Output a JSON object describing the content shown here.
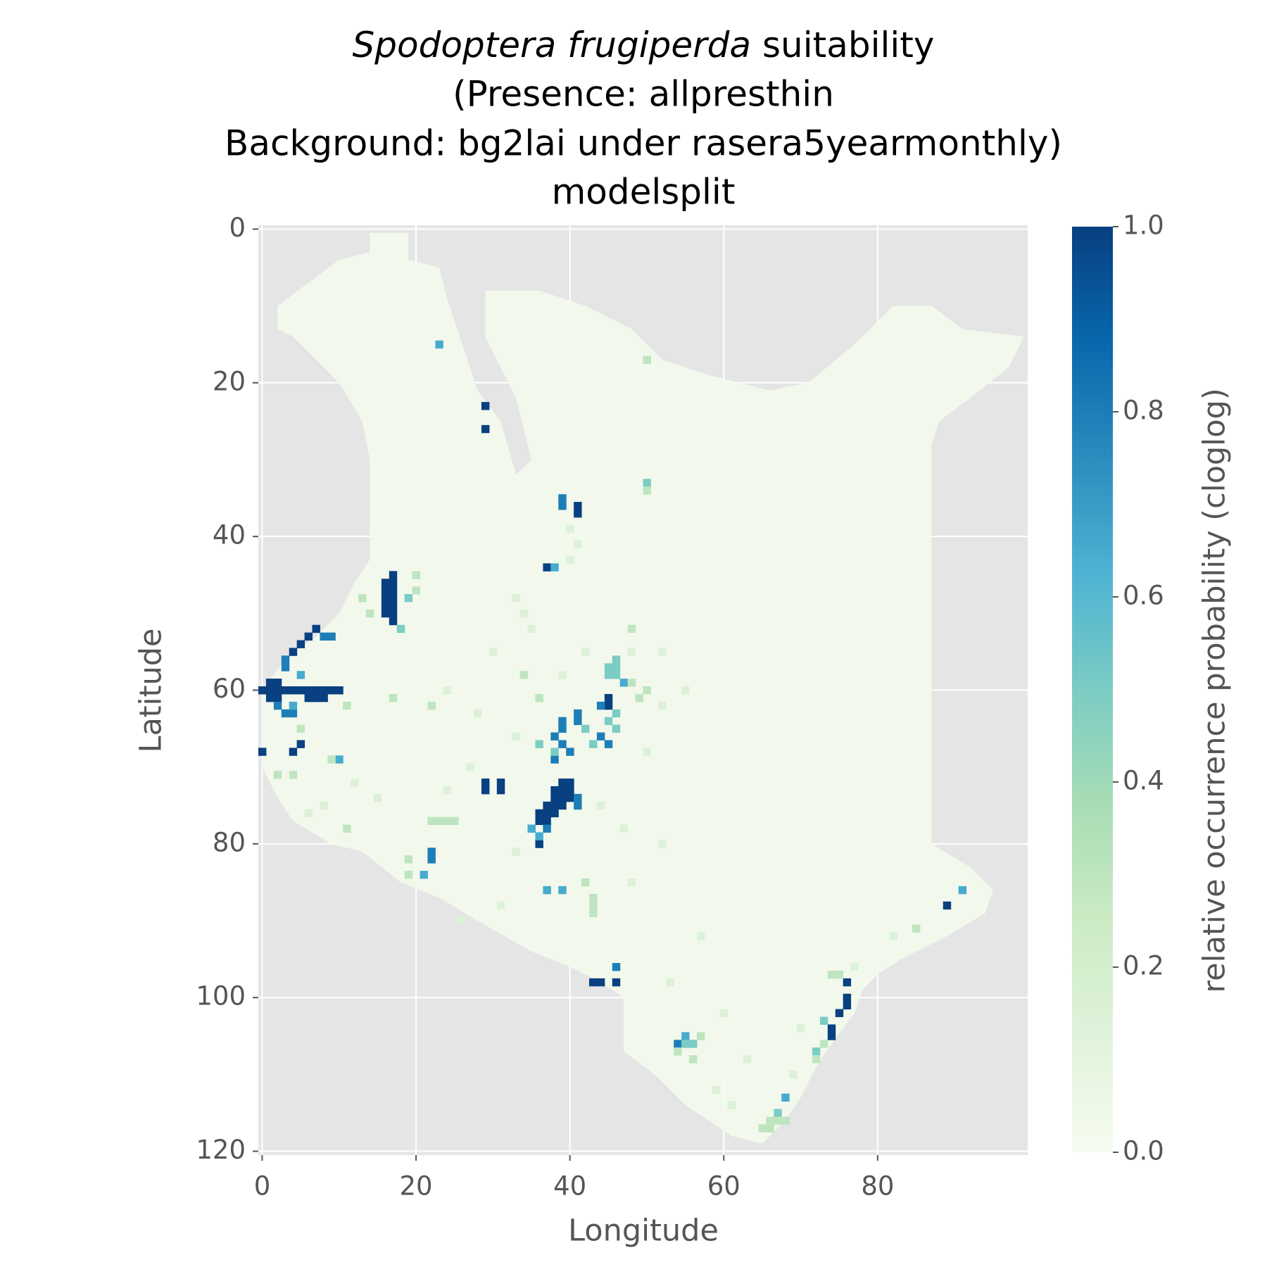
{
  "chart_data": {
    "type": "heatmap",
    "title": {
      "species": "Spodoptera frugiperda",
      "lines": [
        "suitability",
        "(Presence: allpresthin",
        "Background: bg2lai under rasera5yearmonthly)",
        "modelsplit"
      ]
    },
    "xlabel": "Longitude",
    "ylabel": "Latitude",
    "xlim": [
      -0.5,
      99.5
    ],
    "ylim": [
      -0.5,
      120.5
    ],
    "y_inverted": true,
    "xticks": [
      0,
      20,
      40,
      60,
      80
    ],
    "yticks": [
      0,
      20,
      40,
      60,
      80,
      100,
      120
    ],
    "grid": true,
    "colorbar": {
      "label": "relative occurrence probability (cloglog)",
      "lim": [
        0,
        1
      ],
      "ticks": [
        {
          "value": 0,
          "label": "0.0"
        },
        0.2,
        0.4,
        0.6,
        0.8,
        {
          "value": 1,
          "label": "1.0"
        }
      ]
    },
    "colormap": [
      "#f7fcf0",
      "#e0f3db",
      "#ccebc5",
      "#a8ddb5",
      "#7bccc4",
      "#4eb3d3",
      "#2b8cbe",
      "#0868ac",
      "#084081"
    ],
    "land_value": 0.02,
    "land_outline": [
      [
        14,
        0.5
      ],
      [
        19,
        0.5
      ],
      [
        19,
        4
      ],
      [
        23,
        5
      ],
      [
        24,
        9
      ],
      [
        26,
        15
      ],
      [
        28,
        21
      ],
      [
        31,
        25
      ],
      [
        33,
        32
      ],
      [
        35,
        30
      ],
      [
        33,
        22
      ],
      [
        29,
        14
      ],
      [
        29,
        8
      ],
      [
        36,
        8
      ],
      [
        42,
        10
      ],
      [
        48,
        13
      ],
      [
        52,
        17
      ],
      [
        58,
        19
      ],
      [
        66,
        21
      ],
      [
        71,
        20
      ],
      [
        77,
        15
      ],
      [
        82,
        10
      ],
      [
        87,
        10
      ],
      [
        91,
        13
      ],
      [
        99,
        14
      ],
      [
        97,
        18
      ],
      [
        92,
        22
      ],
      [
        88,
        25
      ],
      [
        87,
        28
      ],
      [
        87,
        80
      ],
      [
        92,
        83
      ],
      [
        95,
        86
      ],
      [
        94,
        89
      ],
      [
        89,
        92
      ],
      [
        83,
        95
      ],
      [
        80,
        97
      ],
      [
        78,
        99
      ],
      [
        77,
        102
      ],
      [
        74,
        106
      ],
      [
        72,
        109
      ],
      [
        70,
        113
      ],
      [
        68,
        116
      ],
      [
        65,
        119
      ],
      [
        61,
        118
      ],
      [
        58,
        116
      ],
      [
        55,
        114
      ],
      [
        51,
        110
      ],
      [
        47,
        107
      ],
      [
        47,
        100
      ],
      [
        44,
        98
      ],
      [
        40,
        96
      ],
      [
        35,
        94
      ],
      [
        28,
        90
      ],
      [
        23,
        87
      ],
      [
        18,
        85
      ],
      [
        13,
        81
      ],
      [
        9,
        80
      ],
      [
        4,
        77
      ],
      [
        2,
        74
      ],
      [
        1,
        72
      ],
      [
        0,
        70
      ],
      [
        0,
        60
      ],
      [
        3,
        56
      ],
      [
        7,
        53
      ],
      [
        10,
        50
      ],
      [
        12,
        46
      ],
      [
        14,
        43
      ],
      [
        14,
        30
      ],
      [
        13,
        25
      ],
      [
        10,
        20
      ],
      [
        7,
        17
      ],
      [
        4,
        14
      ],
      [
        2,
        13
      ],
      [
        2,
        10
      ],
      [
        6,
        7
      ],
      [
        10,
        4
      ],
      [
        14,
        3
      ]
    ],
    "cells": [
      [
        17,
        45,
        1
      ],
      [
        17,
        46,
        1
      ],
      [
        17,
        47,
        1
      ],
      [
        17,
        48,
        1
      ],
      [
        17,
        49,
        1
      ],
      [
        17,
        50,
        1
      ],
      [
        17,
        51,
        1
      ],
      [
        16,
        46,
        1
      ],
      [
        16,
        47,
        1
      ],
      [
        16,
        48,
        1
      ],
      [
        16,
        49,
        1
      ],
      [
        16,
        50,
        1
      ],
      [
        0,
        60,
        1
      ],
      [
        1,
        60,
        1
      ],
      [
        2,
        60,
        1
      ],
      [
        3,
        60,
        1
      ],
      [
        4,
        60,
        1
      ],
      [
        5,
        60,
        1
      ],
      [
        6,
        60,
        1
      ],
      [
        7,
        60,
        1
      ],
      [
        8,
        60,
        1
      ],
      [
        9,
        60,
        1
      ],
      [
        10,
        60,
        1
      ],
      [
        1,
        61,
        1
      ],
      [
        2,
        61,
        1
      ],
      [
        6,
        61,
        1
      ],
      [
        7,
        61,
        1
      ],
      [
        8,
        61,
        1
      ],
      [
        1,
        59,
        1
      ],
      [
        2,
        59,
        1
      ],
      [
        4,
        55,
        1
      ],
      [
        5,
        54,
        1
      ],
      [
        6,
        53,
        1
      ],
      [
        7,
        52,
        1
      ],
      [
        29,
        23,
        1
      ],
      [
        29,
        26,
        1
      ],
      [
        41,
        36,
        1
      ],
      [
        41,
        37,
        1
      ],
      [
        37,
        44,
        1
      ],
      [
        39,
        72,
        1
      ],
      [
        40,
        72,
        1
      ],
      [
        38,
        73,
        1
      ],
      [
        39,
        73,
        1
      ],
      [
        40,
        73,
        1
      ],
      [
        38,
        74,
        1
      ],
      [
        39,
        74,
        1
      ],
      [
        40,
        74,
        1
      ],
      [
        37,
        75,
        1
      ],
      [
        38,
        75,
        1
      ],
      [
        39,
        75,
        1
      ],
      [
        36,
        76,
        1
      ],
      [
        37,
        76,
        1
      ],
      [
        38,
        76,
        1
      ],
      [
        36,
        77,
        1
      ],
      [
        37,
        77,
        1
      ],
      [
        29,
        72,
        1
      ],
      [
        31,
        72,
        1
      ],
      [
        29,
        73,
        1
      ],
      [
        31,
        73,
        1
      ],
      [
        36,
        80,
        1
      ],
      [
        43,
        98,
        1
      ],
      [
        44,
        98,
        1
      ],
      [
        46,
        98,
        1
      ],
      [
        76,
        98,
        1
      ],
      [
        76,
        100,
        1
      ],
      [
        76,
        101,
        1
      ],
      [
        75,
        102,
        1
      ],
      [
        74,
        104,
        1
      ],
      [
        74,
        105,
        1
      ],
      [
        89,
        88,
        1
      ],
      [
        0,
        68,
        1
      ],
      [
        4,
        68,
        1
      ],
      [
        5,
        67,
        1
      ],
      [
        45,
        61,
        1
      ],
      [
        45,
        62,
        1
      ],
      [
        39,
        35,
        0.8
      ],
      [
        39,
        36,
        0.8
      ],
      [
        39,
        64,
        0.8
      ],
      [
        39,
        65,
        0.8
      ],
      [
        38,
        66,
        0.8
      ],
      [
        39,
        67,
        0.8
      ],
      [
        40,
        68,
        0.8
      ],
      [
        38,
        69,
        0.8
      ],
      [
        44,
        66,
        0.8
      ],
      [
        45,
        67,
        0.8
      ],
      [
        22,
        81,
        0.8
      ],
      [
        22,
        82,
        0.8
      ],
      [
        37,
        78,
        0.8
      ],
      [
        8,
        53,
        0.8
      ],
      [
        9,
        53,
        0.8
      ],
      [
        3,
        56,
        0.8
      ],
      [
        3,
        57,
        0.8
      ],
      [
        2,
        62,
        0.8
      ],
      [
        3,
        63,
        0.8
      ],
      [
        4,
        63,
        0.8
      ],
      [
        46,
        96,
        0.8
      ],
      [
        54,
        106,
        0.8
      ],
      [
        44,
        62,
        0.8
      ],
      [
        41,
        63,
        0.8
      ],
      [
        41,
        64,
        0.8
      ],
      [
        41,
        74,
        0.8
      ],
      [
        41,
        75,
        0.8
      ],
      [
        35,
        78,
        0.8
      ],
      [
        23,
        15,
        0.65
      ],
      [
        38,
        44,
        0.65
      ],
      [
        35,
        78,
        0.65
      ],
      [
        36,
        79,
        0.65
      ],
      [
        21,
        84,
        0.65
      ],
      [
        47,
        59,
        0.65
      ],
      [
        5,
        58,
        0.65
      ],
      [
        4,
        62,
        0.65
      ],
      [
        10,
        69,
        0.65
      ],
      [
        91,
        86,
        0.65
      ],
      [
        37,
        86,
        0.65
      ],
      [
        39,
        86,
        0.65
      ],
      [
        55,
        105,
        0.65
      ],
      [
        68,
        113,
        0.65
      ],
      [
        46,
        56,
        0.5
      ],
      [
        45,
        57,
        0.5
      ],
      [
        46,
        57,
        0.5
      ],
      [
        45,
        58,
        0.5
      ],
      [
        46,
        58,
        0.5
      ],
      [
        50,
        33,
        0.5
      ],
      [
        45,
        64,
        0.5
      ],
      [
        46,
        63,
        0.5
      ],
      [
        46,
        65,
        0.5
      ],
      [
        55,
        106,
        0.5
      ],
      [
        56,
        106,
        0.5
      ],
      [
        67,
        115,
        0.5
      ],
      [
        73,
        103,
        0.5
      ],
      [
        72,
        107,
        0.5
      ],
      [
        18,
        52,
        0.5
      ],
      [
        19,
        48,
        0.5
      ],
      [
        42,
        65,
        0.5
      ],
      [
        43,
        67,
        0.5
      ],
      [
        38,
        68,
        0.5
      ],
      [
        36,
        67,
        0.5
      ],
      [
        50,
        17,
        0.3
      ],
      [
        66,
        116,
        0.3
      ],
      [
        67,
        116,
        0.3
      ],
      [
        68,
        116,
        0.3
      ],
      [
        65,
        117,
        0.3
      ],
      [
        66,
        117,
        0.3
      ],
      [
        22,
        77,
        0.3
      ],
      [
        23,
        77,
        0.3
      ],
      [
        24,
        77,
        0.3
      ],
      [
        25,
        77,
        0.3
      ],
      [
        11,
        78,
        0.3
      ],
      [
        5,
        65,
        0.3
      ],
      [
        4,
        71,
        0.3
      ],
      [
        2,
        71,
        0.3
      ],
      [
        9,
        69,
        0.3
      ],
      [
        74,
        97,
        0.3
      ],
      [
        75,
        97,
        0.3
      ],
      [
        73,
        106,
        0.3
      ],
      [
        72,
        108,
        0.3
      ],
      [
        57,
        105,
        0.3
      ],
      [
        54,
        107,
        0.3
      ],
      [
        56,
        108,
        0.3
      ],
      [
        43,
        87,
        0.3
      ],
      [
        43,
        88,
        0.3
      ],
      [
        43,
        89,
        0.3
      ],
      [
        42,
        85,
        0.3
      ],
      [
        48,
        59,
        0.3
      ],
      [
        49,
        61,
        0.3
      ],
      [
        50,
        60,
        0.3
      ],
      [
        20,
        45,
        0.3
      ],
      [
        20,
        47,
        0.3
      ],
      [
        13,
        48,
        0.3
      ],
      [
        14,
        50,
        0.3
      ],
      [
        11,
        62,
        0.3
      ],
      [
        17,
        61,
        0.3
      ],
      [
        22,
        62,
        0.3
      ],
      [
        19,
        82,
        0.3
      ],
      [
        19,
        84,
        0.3
      ],
      [
        48,
        52,
        0.3
      ],
      [
        34,
        58,
        0.3
      ],
      [
        36,
        61,
        0.3
      ],
      [
        50,
        34,
        0.3
      ],
      [
        85,
        91,
        0.3
      ],
      [
        40,
        39,
        0.15
      ],
      [
        41,
        41,
        0.15
      ],
      [
        40,
        43,
        0.15
      ],
      [
        33,
        48,
        0.15
      ],
      [
        34,
        50,
        0.15
      ],
      [
        35,
        52,
        0.15
      ],
      [
        30,
        55,
        0.15
      ],
      [
        42,
        55,
        0.15
      ],
      [
        39,
        58,
        0.15
      ],
      [
        24,
        60,
        0.15
      ],
      [
        28,
        63,
        0.15
      ],
      [
        33,
        66,
        0.15
      ],
      [
        27,
        70,
        0.15
      ],
      [
        24,
        73,
        0.15
      ],
      [
        15,
        74,
        0.15
      ],
      [
        12,
        72,
        0.15
      ],
      [
        8,
        75,
        0.15
      ],
      [
        6,
        76,
        0.15
      ],
      [
        33,
        81,
        0.15
      ],
      [
        44,
        75,
        0.15
      ],
      [
        47,
        78,
        0.15
      ],
      [
        52,
        80,
        0.15
      ],
      [
        50,
        68,
        0.15
      ],
      [
        52,
        62,
        0.15
      ],
      [
        48,
        85,
        0.15
      ],
      [
        57,
        92,
        0.15
      ],
      [
        53,
        98,
        0.15
      ],
      [
        60,
        102,
        0.15
      ],
      [
        63,
        108,
        0.15
      ],
      [
        59,
        112,
        0.15
      ],
      [
        61,
        114,
        0.15
      ],
      [
        69,
        110,
        0.15
      ],
      [
        70,
        104,
        0.15
      ],
      [
        82,
        92,
        0.15
      ],
      [
        77,
        96,
        0.15
      ],
      [
        52,
        55,
        0.15
      ],
      [
        55,
        60,
        0.15
      ],
      [
        48,
        55,
        0.15
      ],
      [
        26,
        90,
        0.15
      ],
      [
        31,
        88,
        0.15
      ]
    ]
  }
}
